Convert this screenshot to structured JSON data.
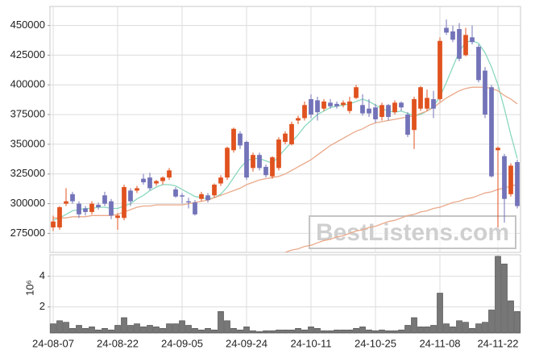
{
  "chart_data": [
    {
      "type": "candlestick",
      "open": [
        280000,
        280000,
        300000,
        308000,
        300000,
        296000,
        293000,
        299000,
        307000,
        302000,
        288000,
        288000,
        311000,
        311000,
        321000,
        322000,
        317000,
        319000,
        322000,
        312000,
        307000,
        302000,
        301000,
        304000,
        307000,
        307000,
        317000,
        322000,
        345000,
        359000,
        352000,
        330000,
        341000,
        331000,
        323000,
        330000,
        352000,
        350000,
        370000,
        372000,
        388000,
        387000,
        380000,
        385000,
        384000,
        383000,
        378000,
        389000,
        383000,
        380000,
        381000,
        373000,
        383000,
        377000,
        385000,
        375000,
        362000,
        380000,
        380000,
        388000,
        388000,
        448000,
        445000,
        447000,
        425000,
        440000,
        432000,
        412000,
        398000,
        345000,
        340000,
        308000,
        335000
      ],
      "high": [
        290000,
        298000,
        313000,
        310000,
        302000,
        298000,
        302000,
        301000,
        310000,
        304000,
        292000,
        316000,
        313000,
        315000,
        325000,
        326000,
        320000,
        323000,
        330000,
        314000,
        309000,
        305000,
        303000,
        310000,
        309000,
        317000,
        324000,
        348000,
        364000,
        361000,
        353000,
        343000,
        343000,
        333000,
        340000,
        356000,
        361000,
        369000,
        374000,
        386000,
        392000,
        390000,
        388000,
        388000,
        386000,
        387000,
        390000,
        400000,
        392000,
        388000,
        384000,
        385000,
        384000,
        387000,
        386000,
        377000,
        390000,
        399000,
        396000,
        395000,
        440000,
        455000,
        450000,
        452000,
        448000,
        450000,
        434000,
        415000,
        400000,
        348000,
        342000,
        334000,
        337000
      ],
      "low": [
        277000,
        278000,
        298000,
        300000,
        288000,
        290000,
        291000,
        295000,
        298000,
        287000,
        278000,
        286000,
        298000,
        309000,
        316000,
        311000,
        315000,
        316000,
        320000,
        305000,
        300000,
        296000,
        290000,
        302000,
        301000,
        305000,
        315000,
        320000,
        343000,
        346000,
        320000,
        327000,
        328000,
        322000,
        321000,
        328000,
        350000,
        349000,
        367000,
        370000,
        372000,
        370000,
        378000,
        380000,
        380000,
        381000,
        376000,
        388000,
        374000,
        373000,
        368000,
        370000,
        370000,
        375000,
        378000,
        356000,
        346000,
        378000,
        378000,
        372000,
        386000,
        442000,
        436000,
        420000,
        424000,
        434000,
        402000,
        372000,
        322000,
        280000,
        284000,
        306000,
        296000
      ],
      "close": [
        285000,
        297000,
        302000,
        302000,
        291000,
        293000,
        300000,
        297000,
        300000,
        290000,
        290000,
        314000,
        302000,
        313000,
        318000,
        313000,
        319000,
        322000,
        328000,
        306000,
        306000,
        301000,
        291000,
        308000,
        303000,
        316000,
        322000,
        347000,
        363000,
        349000,
        322000,
        341000,
        330000,
        324000,
        339000,
        354000,
        359000,
        367000,
        372000,
        383000,
        375000,
        377000,
        386000,
        382000,
        382000,
        385000,
        386000,
        398000,
        376000,
        376000,
        371000,
        383000,
        373000,
        385000,
        381000,
        358000,
        388000,
        398000,
        389000,
        380000,
        437000,
        444000,
        438000,
        422000,
        442000,
        436000,
        404000,
        375000,
        323000,
        347000,
        304000,
        332000,
        298000
      ],
      "up_color": "#e0521f",
      "down_color": "#7373b9",
      "lines": [
        {
          "color": "#8ad8bd",
          "values": [
            286000,
            288000,
            291000,
            294000,
            295000,
            296000,
            296000,
            297000,
            297000,
            296000,
            296000,
            298000,
            300000,
            304000,
            307000,
            311000,
            314000,
            316000,
            316000,
            315000,
            312000,
            309000,
            306000,
            305000,
            304000,
            305000,
            308000,
            314000,
            322000,
            330000,
            336000,
            338000,
            338000,
            336000,
            334000,
            340000,
            346000,
            352000,
            358000,
            365000,
            370000,
            375000,
            378000,
            381000,
            382000,
            383000,
            384000,
            386000,
            388000,
            386000,
            383000,
            380000,
            378000,
            377000,
            378000,
            376000,
            374000,
            375000,
            378000,
            382000,
            390000,
            402000,
            415000,
            428000,
            436000,
            437000,
            435000,
            427000,
            415000,
            400000,
            380000,
            358000,
            338000
          ]
        },
        {
          "color": "#eaa98a",
          "values": [
            288000,
            288000,
            288000,
            289000,
            289000,
            289000,
            290000,
            290000,
            290000,
            290000,
            291000,
            293000,
            295000,
            297000,
            298000,
            298000,
            299000,
            299000,
            299000,
            299000,
            299000,
            300000,
            301000,
            302000,
            303000,
            305000,
            307000,
            309000,
            311000,
            313000,
            316000,
            318000,
            320000,
            321000,
            322000,
            323000,
            325000,
            328000,
            331000,
            334000,
            337000,
            341000,
            345000,
            349000,
            352000,
            355000,
            358000,
            361000,
            363000,
            366000,
            368000,
            369000,
            370000,
            371000,
            372000,
            373000,
            374000,
            376000,
            378000,
            381000,
            385000,
            389000,
            392000,
            395000,
            397000,
            398000,
            398000,
            398000,
            397000,
            395000,
            391000,
            388000,
            384000
          ]
        },
        {
          "color": "#eaa98a",
          "values": [
            null,
            null,
            null,
            null,
            null,
            null,
            null,
            null,
            null,
            null,
            null,
            null,
            null,
            null,
            null,
            null,
            null,
            null,
            null,
            null,
            null,
            null,
            null,
            null,
            null,
            null,
            null,
            null,
            null,
            null,
            null,
            null,
            null,
            null,
            null,
            null,
            259000,
            261000,
            262000,
            264000,
            265000,
            267000,
            269000,
            270000,
            272000,
            273000,
            275000,
            277000,
            278000,
            280000,
            281000,
            283000,
            285000,
            286000,
            288000,
            290000,
            291000,
            293000,
            294000,
            296000,
            297000,
            299000,
            301000,
            302000,
            304000,
            305000,
            307000,
            309000,
            310000,
            312000,
            313000,
            315000,
            316000
          ]
        }
      ],
      "ylim": [
        259000,
        466000
      ],
      "yticks": [
        275000,
        300000,
        325000,
        350000,
        375000,
        400000,
        425000,
        450000
      ],
      "grid": true,
      "watermark": "BestListens.com"
    },
    {
      "type": "bar",
      "categories": [
        "24-08-07",
        null,
        null,
        null,
        null,
        null,
        null,
        null,
        null,
        null,
        "24-08-22",
        null,
        null,
        null,
        null,
        null,
        null,
        null,
        null,
        null,
        "24-09-05",
        null,
        null,
        null,
        null,
        null,
        null,
        null,
        null,
        null,
        "24-09-24",
        null,
        null,
        null,
        null,
        null,
        null,
        null,
        null,
        null,
        "24-10-11",
        null,
        null,
        null,
        null,
        null,
        null,
        null,
        null,
        null,
        "24-10-25",
        null,
        null,
        null,
        null,
        null,
        null,
        null,
        null,
        null,
        "24-11-08",
        null,
        null,
        null,
        null,
        null,
        null,
        null,
        null,
        "24-11-22",
        null,
        null,
        null
      ],
      "values": [
        0.9,
        1.1,
        1.0,
        0.6,
        0.8,
        0.6,
        0.7,
        0.5,
        0.6,
        0.5,
        0.8,
        1.3,
        0.8,
        0.9,
        0.7,
        0.8,
        0.7,
        0.6,
        0.9,
        0.9,
        1.1,
        0.8,
        0.6,
        0.5,
        0.6,
        0.5,
        1.7,
        1.1,
        0.6,
        0.5,
        0.7,
        0.45,
        0.4,
        0.45,
        0.45,
        0.5,
        0.5,
        0.5,
        0.6,
        0.5,
        0.7,
        0.6,
        0.45,
        0.45,
        0.5,
        0.5,
        0.5,
        0.6,
        0.7,
        0.5,
        0.45,
        0.5,
        0.45,
        0.45,
        0.5,
        0.8,
        1.3,
        0.7,
        0.7,
        0.8,
        2.9,
        0.9,
        0.7,
        1.1,
        1.0,
        0.6,
        0.9,
        1.0,
        1.8,
        5.3,
        4.8,
        2.4,
        1.7
      ],
      "color": "#777777",
      "ylim": [
        0.3,
        5.4
      ],
      "yticks": [
        2,
        4
      ],
      "ylabel": "10⁶",
      "grid": true
    }
  ]
}
